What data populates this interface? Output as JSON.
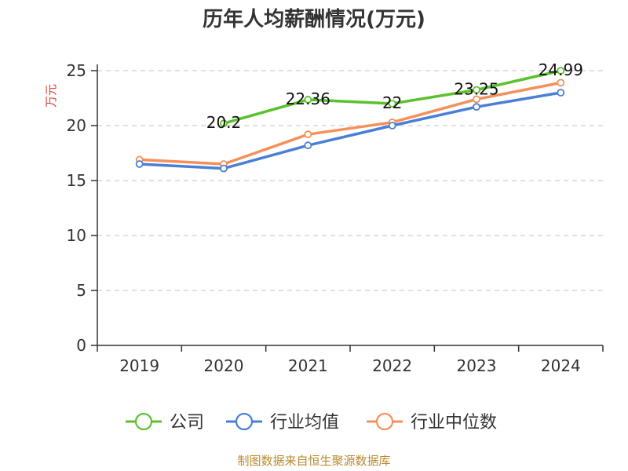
{
  "chart_data": {
    "type": "line",
    "title": "历年人均薪酬情况(万元)",
    "ylabel": "万元",
    "xlabel": "",
    "ylim": [
      0,
      25
    ],
    "yticks": [
      0,
      5,
      10,
      15,
      20,
      25
    ],
    "categories": [
      "2019",
      "2020",
      "2021",
      "2022",
      "2023",
      "2024"
    ],
    "grid": true,
    "legend_position": "bottom",
    "series": [
      {
        "name": "公司",
        "color": "#5cc12e",
        "values": [
          null,
          20.2,
          22.36,
          22,
          23.25,
          24.99
        ],
        "labels": [
          "",
          "20.2",
          "22.36",
          "22",
          "23.25",
          "24.99"
        ]
      },
      {
        "name": "行业均值",
        "color": "#4a7fd6",
        "values": [
          16.5,
          16.1,
          18.2,
          20.0,
          21.7,
          23.0
        ],
        "labels": []
      },
      {
        "name": "行业中位数",
        "color": "#f5905a",
        "values": [
          16.9,
          16.5,
          19.2,
          20.3,
          22.4,
          23.9
        ],
        "labels": []
      }
    ]
  },
  "footer": {
    "source": "制图数据来自恒生聚源数据库"
  }
}
